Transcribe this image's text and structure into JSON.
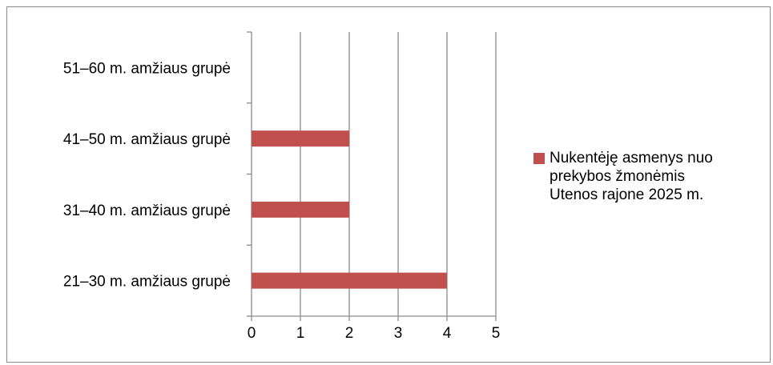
{
  "chart_data": {
    "type": "bar",
    "orientation": "horizontal",
    "title": "",
    "xlabel": "",
    "ylabel": "",
    "categories": [
      "21–30 m. amžiaus grupė",
      "31–40 m. amžiaus grupė",
      "41–50 m. amžiaus grupė",
      "51–60 m. amžiaus grupė"
    ],
    "series": [
      {
        "name": "Nukentėję asmenys nuo prekybos žmonėmis Utenos rajone 2025 m.",
        "legend_lines": [
          "Nukentėję asmenys nuo",
          "prekybos žmonėmis",
          "Utenos rajone 2025 m."
        ],
        "values": [
          4,
          2,
          2,
          0
        ],
        "color": "#c0504d"
      }
    ],
    "xlim": [
      0,
      5
    ],
    "xticks": [
      "0",
      "1",
      "2",
      "3",
      "4",
      "5"
    ],
    "grid": true,
    "legend_position": "right"
  }
}
